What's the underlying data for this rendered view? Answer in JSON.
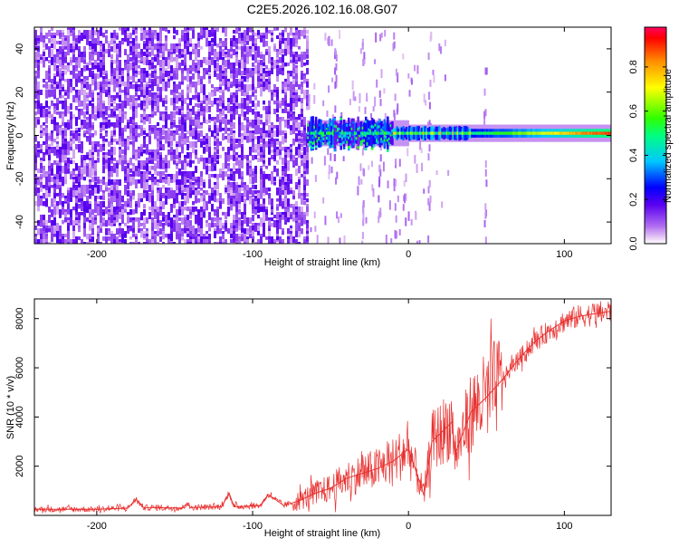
{
  "title": "C2E5.2026.102.16.08.G07",
  "colors": {
    "snr_line": "#e8302f",
    "axis": "#000000",
    "background": "#ffffff"
  },
  "chart_data": [
    {
      "type": "heatmap",
      "name": "spectrogram",
      "xlabel": "Height of straight line (km)",
      "ylabel": "Frequency (Hz)",
      "xlim": [
        -240,
        130
      ],
      "ylim": [
        -50,
        50
      ],
      "xticks": [
        -200,
        -100,
        0,
        100
      ],
      "xtick_labels": [
        "-200",
        "-100",
        "0",
        "100"
      ],
      "yticks": [
        -40,
        -20,
        0,
        20,
        40
      ],
      "ytick_labels": [
        "-40",
        "-20",
        "0",
        "20",
        "40"
      ],
      "colorbar": {
        "label": "Normalized spectral amplitude",
        "range": [
          0,
          0.98
        ],
        "ticks": [
          0.0,
          0.2,
          0.4,
          0.6,
          0.8
        ],
        "tick_labels": [
          "0.0",
          "0.2",
          "0.4",
          "0.6",
          "0.8"
        ],
        "colormap": "rainbow (magenta-blue-cyan-green-yellow-red)"
      },
      "description_features": {
        "noise_region_x": [
          -240,
          -65
        ],
        "noise_level_range": [
          0.02,
          0.18
        ],
        "signal_band_center_hz": 1,
        "signal_start_km": -65,
        "signal_peak_amplitude": 0.95
      }
    },
    {
      "type": "line",
      "name": "snr",
      "xlabel": "Height of straight line (km)",
      "ylabel": "SNR (10 * v/v)",
      "xlim": [
        -240,
        130
      ],
      "ylim": [
        0,
        8800
      ],
      "xticks": [
        -200,
        -100,
        0,
        100
      ],
      "xtick_labels": [
        "-200",
        "-100",
        "0",
        "100"
      ],
      "yticks": [
        2000,
        4000,
        6000,
        8000
      ],
      "ytick_labels": [
        "2000",
        "4000",
        "6000",
        "8000"
      ],
      "series": [
        {
          "name": "SNR",
          "color": "#e8302f",
          "x": [
            -240,
            -200,
            -180,
            -175,
            -170,
            -145,
            -142,
            -140,
            -120,
            -115,
            -112,
            -95,
            -90,
            -80,
            -70,
            -60,
            -50,
            -40,
            -30,
            -20,
            -10,
            0,
            8,
            10,
            15,
            20,
            28,
            30,
            40,
            50,
            60,
            70,
            80,
            90,
            100,
            110,
            120,
            130
          ],
          "y": [
            250,
            250,
            300,
            650,
            320,
            300,
            500,
            320,
            350,
            900,
            350,
            400,
            850,
            400,
            600,
            900,
            1100,
            1500,
            1700,
            1900,
            2200,
            2700,
            1200,
            800,
            3000,
            3300,
            3800,
            2500,
            4200,
            4800,
            5500,
            6300,
            7000,
            7500,
            7900,
            8100,
            8200,
            8300
          ]
        }
      ]
    }
  ]
}
